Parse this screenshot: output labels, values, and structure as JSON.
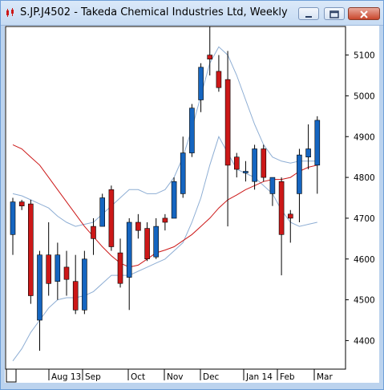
{
  "window": {
    "title": "S.JP.J4502 - Takeda Chemical Industries Ltd, Weekly",
    "app_icon": "candlestick-chart-icon",
    "buttons": [
      "minimize-icon",
      "restore-icon",
      "close-icon"
    ]
  },
  "chart_data": {
    "type": "candlestick",
    "title": "",
    "xlabel": "",
    "ylabel": "",
    "ylim": [
      4330,
      5170
    ],
    "y_ticks": [
      4400,
      4500,
      4600,
      4700,
      4800,
      4900,
      5000,
      5100
    ],
    "x_labels": [
      "Aug 13",
      "Sep",
      "Oct",
      "Nov",
      "Dec",
      "Jan 14",
      "Feb",
      "Mar"
    ],
    "grid": false,
    "up_color": "#1565c0",
    "down_color": "#cc1818",
    "candles": [
      {
        "o": 4660,
        "h": 4750,
        "l": 4610,
        "c": 4740
      },
      {
        "o": 4740,
        "h": 4745,
        "l": 4720,
        "c": 4730
      },
      {
        "o": 4735,
        "h": 4745,
        "l": 4490,
        "c": 4510
      },
      {
        "o": 4450,
        "h": 4620,
        "l": 4375,
        "c": 4610
      },
      {
        "o": 4610,
        "h": 4690,
        "l": 4510,
        "c": 4540
      },
      {
        "o": 4545,
        "h": 4640,
        "l": 4500,
        "c": 4610
      },
      {
        "o": 4580,
        "h": 4620,
        "l": 4510,
        "c": 4550
      },
      {
        "o": 4545,
        "h": 4610,
        "l": 4465,
        "c": 4475
      },
      {
        "o": 4475,
        "h": 4620,
        "l": 4465,
        "c": 4600
      },
      {
        "o": 4680,
        "h": 4700,
        "l": 4610,
        "c": 4650
      },
      {
        "o": 4680,
        "h": 4760,
        "l": 4680,
        "c": 4750
      },
      {
        "o": 4770,
        "h": 4780,
        "l": 4620,
        "c": 4630
      },
      {
        "o": 4615,
        "h": 4650,
        "l": 4530,
        "c": 4540
      },
      {
        "o": 4555,
        "h": 4700,
        "l": 4475,
        "c": 4690
      },
      {
        "o": 4690,
        "h": 4710,
        "l": 4650,
        "c": 4670
      },
      {
        "o": 4675,
        "h": 4690,
        "l": 4595,
        "c": 4600
      },
      {
        "o": 4605,
        "h": 4700,
        "l": 4600,
        "c": 4680
      },
      {
        "o": 4700,
        "h": 4710,
        "l": 4670,
        "c": 4690
      },
      {
        "o": 4700,
        "h": 4800,
        "l": 4700,
        "c": 4790
      },
      {
        "o": 4760,
        "h": 4900,
        "l": 4750,
        "c": 4860
      },
      {
        "o": 4860,
        "h": 4980,
        "l": 4850,
        "c": 4970
      },
      {
        "o": 4990,
        "h": 5080,
        "l": 4960,
        "c": 5070
      },
      {
        "o": 5100,
        "h": 5170,
        "l": 5050,
        "c": 5090
      },
      {
        "o": 5060,
        "h": 5100,
        "l": 5010,
        "c": 5020
      },
      {
        "o": 5040,
        "h": 5110,
        "l": 4680,
        "c": 4830
      },
      {
        "o": 4850,
        "h": 4860,
        "l": 4800,
        "c": 4820
      },
      {
        "o": 4815,
        "h": 4840,
        "l": 4790,
        "c": 4815
      },
      {
        "o": 4790,
        "h": 4880,
        "l": 4770,
        "c": 4870
      },
      {
        "o": 4870,
        "h": 4880,
        "l": 4790,
        "c": 4800
      },
      {
        "o": 4760,
        "h": 4800,
        "l": 4730,
        "c": 4800
      },
      {
        "o": 4790,
        "h": 4800,
        "l": 4560,
        "c": 4660
      },
      {
        "o": 4710,
        "h": 4720,
        "l": 4640,
        "c": 4700
      },
      {
        "o": 4760,
        "h": 4870,
        "l": 4690,
        "c": 4855
      },
      {
        "o": 4850,
        "h": 4930,
        "l": 4820,
        "c": 4870
      },
      {
        "o": 4830,
        "h": 4950,
        "l": 4760,
        "c": 4940
      }
    ],
    "moving_average": {
      "color": "#cc1818",
      "values": [
        4880,
        4870,
        4850,
        4830,
        4800,
        4770,
        4740,
        4710,
        4680,
        4655,
        4630,
        4608,
        4590,
        4580,
        4585,
        4600,
        4615,
        4622,
        4630,
        4645,
        4660,
        4680,
        4700,
        4725,
        4745,
        4757,
        4770,
        4780,
        4790,
        4795,
        4795,
        4800,
        4815,
        4825,
        4830
      ]
    },
    "bands": {
      "color": "#8eaed4",
      "upper": [
        4760,
        4755,
        4745,
        4735,
        4725,
        4705,
        4690,
        4680,
        4685,
        4690,
        4710,
        4730,
        4750,
        4770,
        4770,
        4760,
        4760,
        4770,
        4800,
        4850,
        4920,
        5000,
        5080,
        5120,
        5100,
        5050,
        4990,
        4930,
        4880,
        4850,
        4840,
        4835,
        4840,
        4840,
        4840
      ],
      "lower": [
        4350,
        4380,
        4420,
        4450,
        4480,
        4500,
        4505,
        4505,
        4510,
        4520,
        4540,
        4560,
        4560,
        4560,
        4570,
        4580,
        4590,
        4600,
        4620,
        4640,
        4690,
        4750,
        4830,
        4900,
        4860,
        4820,
        4810,
        4800,
        4780,
        4760,
        4720,
        4690,
        4680,
        4685,
        4690
      ]
    }
  }
}
